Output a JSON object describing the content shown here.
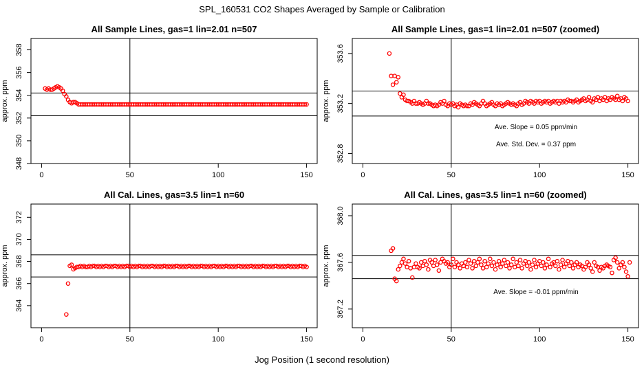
{
  "figure": {
    "title": "SPL_160531  CO2 Shapes Averaged by Sample or Calibration",
    "xlabel": "Jog Position (1 second resolution)"
  },
  "chart_data": [
    {
      "type": "scatter",
      "title": "All Sample Lines, gas=1 lin=2.01 n=507",
      "xlabel": "",
      "ylabel": "approx. ppm",
      "xlim": [
        -6,
        156
      ],
      "ylim": [
        348,
        359
      ],
      "xticks": [
        0,
        50,
        100,
        150
      ],
      "yticks": [
        348,
        350,
        352,
        354,
        356,
        358
      ],
      "hlines": [
        352.2,
        354.2
      ],
      "vline": 50,
      "annotations": [],
      "color": "#ff0000",
      "x_start": 2,
      "y": [
        354.6,
        354.5,
        354.6,
        354.5,
        354.5,
        354.6,
        354.7,
        354.8,
        354.7,
        354.6,
        354.4,
        354.1,
        353.9,
        353.6,
        353.4,
        353.3,
        353.4,
        353.4,
        353.3,
        353.2,
        353.2,
        353.2,
        353.2,
        353.2,
        353.2,
        353.2,
        353.2,
        353.2,
        353.2,
        353.2,
        353.2,
        353.2,
        353.2,
        353.2,
        353.2,
        353.2,
        353.2,
        353.2,
        353.2,
        353.2,
        353.2,
        353.2,
        353.2,
        353.2,
        353.2,
        353.2,
        353.2,
        353.2,
        353.2,
        353.2,
        353.2,
        353.2,
        353.2,
        353.2,
        353.2,
        353.2,
        353.2,
        353.2,
        353.2,
        353.2,
        353.2,
        353.2,
        353.2,
        353.2,
        353.2,
        353.2,
        353.2,
        353.2,
        353.2,
        353.2,
        353.2,
        353.2,
        353.2,
        353.2,
        353.2,
        353.2,
        353.2,
        353.2,
        353.2,
        353.2,
        353.2,
        353.2,
        353.2,
        353.2,
        353.2,
        353.2,
        353.2,
        353.2,
        353.2,
        353.2,
        353.2,
        353.2,
        353.2,
        353.2,
        353.2,
        353.2,
        353.2,
        353.2,
        353.2,
        353.2,
        353.2,
        353.2,
        353.2,
        353.2,
        353.2,
        353.2,
        353.2,
        353.2,
        353.2,
        353.2,
        353.2,
        353.2,
        353.2,
        353.2,
        353.2,
        353.2,
        353.2,
        353.2,
        353.2,
        353.2,
        353.2,
        353.2,
        353.2,
        353.2,
        353.2,
        353.2,
        353.2,
        353.2,
        353.2,
        353.2,
        353.2,
        353.2,
        353.2,
        353.2,
        353.2,
        353.2,
        353.2,
        353.2,
        353.2,
        353.2,
        353.2,
        353.2,
        353.2,
        353.2,
        353.2,
        353.2,
        353.2,
        353.2,
        353.2
      ]
    },
    {
      "type": "scatter",
      "title": "All Sample Lines, gas=1 lin=2.01 n=507 (zoomed)",
      "xlabel": "",
      "ylabel": "approx. ppm",
      "xlim": [
        -6,
        156
      ],
      "ylim": [
        352.72,
        353.72
      ],
      "xticks": [
        0,
        50,
        100,
        150
      ],
      "yticks": [
        352.8,
        353.2,
        353.6
      ],
      "hlines": [
        353.3,
        353.1
      ],
      "vline": 50,
      "annotations": [
        "Ave. Slope =  0.05  ppm/min",
        "Ave. Std. Dev. =  0.37  ppm"
      ],
      "color": "#ff0000",
      "x_start": 15,
      "y": [
        353.6,
        353.42,
        353.35,
        353.42,
        353.37,
        353.41,
        353.28,
        353.25,
        353.27,
        353.23,
        353.22,
        353.22,
        353.21,
        353.2,
        353.22,
        353.2,
        353.2,
        353.21,
        353.2,
        353.19,
        353.2,
        353.22,
        353.2,
        353.2,
        353.19,
        353.18,
        353.19,
        353.18,
        353.19,
        353.21,
        353.2,
        353.22,
        353.19,
        353.18,
        353.2,
        353.19,
        353.2,
        353.18,
        353.19,
        353.17,
        353.2,
        353.19,
        353.18,
        353.19,
        353.18,
        353.18,
        353.2,
        353.19,
        353.21,
        353.2,
        353.19,
        353.18,
        353.2,
        353.22,
        353.2,
        353.18,
        353.19,
        353.2,
        353.21,
        353.19,
        353.18,
        353.2,
        353.19,
        353.2,
        353.18,
        353.19,
        353.2,
        353.21,
        353.2,
        353.19,
        353.2,
        353.19,
        353.18,
        353.2,
        353.21,
        353.19,
        353.2,
        353.22,
        353.21,
        353.2,
        353.22,
        353.21,
        353.2,
        353.22,
        353.21,
        353.22,
        353.2,
        353.21,
        353.22,
        353.21,
        353.22,
        353.2,
        353.21,
        353.22,
        353.21,
        353.22,
        353.2,
        353.22,
        353.21,
        353.22,
        353.21,
        353.23,
        353.22,
        353.22,
        353.21,
        353.22,
        353.23,
        353.21,
        353.22,
        353.23,
        353.24,
        353.22,
        353.23,
        353.25,
        353.22,
        353.21,
        353.24,
        353.23,
        353.25,
        353.22,
        353.24,
        353.23,
        353.25,
        353.22,
        353.24,
        353.23,
        353.25,
        353.24,
        353.23,
        353.26,
        353.23,
        353.24,
        353.22,
        353.25,
        353.24,
        353.22
      ]
    },
    {
      "type": "scatter",
      "title": "All Cal. Lines, gas=3.5 lin=1 n=60",
      "xlabel": "",
      "ylabel": "approx. ppm",
      "xlim": [
        -6,
        156
      ],
      "ylim": [
        362,
        373.2
      ],
      "xticks": [
        0,
        50,
        100,
        150
      ],
      "yticks": [
        364,
        366,
        368,
        370,
        372
      ],
      "hlines": [
        368.6,
        366.6
      ],
      "vline": 50,
      "annotations": [],
      "color": "#ff0000",
      "x_start": 14,
      "y": [
        363.2,
        366.0,
        367.6,
        367.7,
        367.3,
        367.4,
        367.5,
        367.5,
        367.6,
        367.5,
        367.6,
        367.5,
        367.5,
        367.6,
        367.5,
        367.6,
        367.6,
        367.5,
        367.6,
        367.5,
        367.6,
        367.5,
        367.6,
        367.6,
        367.5,
        367.6,
        367.5,
        367.6,
        367.6,
        367.5,
        367.6,
        367.5,
        367.6,
        367.5,
        367.6,
        367.6,
        367.5,
        367.6,
        367.5,
        367.6,
        367.5,
        367.6,
        367.6,
        367.5,
        367.6,
        367.5,
        367.6,
        367.5,
        367.6,
        367.6,
        367.5,
        367.6,
        367.5,
        367.6,
        367.5,
        367.6,
        367.6,
        367.5,
        367.6,
        367.5,
        367.6,
        367.5,
        367.6,
        367.6,
        367.5,
        367.6,
        367.5,
        367.6,
        367.5,
        367.6,
        367.6,
        367.5,
        367.6,
        367.5,
        367.6,
        367.5,
        367.6,
        367.6,
        367.5,
        367.6,
        367.5,
        367.6,
        367.5,
        367.6,
        367.6,
        367.5,
        367.6,
        367.5,
        367.6,
        367.5,
        367.6,
        367.6,
        367.5,
        367.6,
        367.5,
        367.6,
        367.5,
        367.6,
        367.6,
        367.5,
        367.6,
        367.5,
        367.6,
        367.5,
        367.6,
        367.6,
        367.5,
        367.6,
        367.5,
        367.6,
        367.5,
        367.6,
        367.6,
        367.5,
        367.6,
        367.5,
        367.6,
        367.5,
        367.6,
        367.6,
        367.5,
        367.6,
        367.5,
        367.6,
        367.5,
        367.6,
        367.6,
        367.5,
        367.6,
        367.5,
        367.6,
        367.5,
        367.6,
        367.6,
        367.5,
        367.6,
        367.5
      ]
    },
    {
      "type": "scatter",
      "title": "All Cal. Lines, gas=3.5 lin=1 n=60 (zoomed)",
      "xlabel": "",
      "ylabel": "approx. ppm",
      "xlim": [
        -6,
        156
      ],
      "ylim": [
        367.04,
        368.1
      ],
      "xticks": [
        0,
        50,
        100,
        150
      ],
      "yticks": [
        367.2,
        367.6,
        368.0
      ],
      "hlines": [
        367.66,
        367.46
      ],
      "vline": 50,
      "annotations": [
        "Ave. Slope =  -0.01  ppm/min"
      ],
      "color": "#ff0000",
      "x_start": 16,
      "y": [
        367.7,
        367.72,
        367.46,
        367.44,
        367.54,
        367.57,
        367.6,
        367.63,
        367.59,
        367.56,
        367.61,
        367.55,
        367.47,
        367.56,
        367.59,
        367.56,
        367.55,
        367.6,
        367.57,
        367.61,
        367.58,
        367.54,
        367.62,
        367.6,
        367.57,
        367.62,
        367.58,
        367.53,
        367.6,
        367.63,
        367.61,
        367.59,
        367.6,
        367.56,
        367.58,
        367.63,
        367.56,
        367.6,
        367.58,
        367.55,
        367.59,
        367.57,
        367.6,
        367.56,
        367.62,
        367.59,
        367.55,
        367.61,
        367.57,
        367.6,
        367.63,
        367.58,
        367.55,
        367.61,
        367.56,
        367.59,
        367.63,
        367.57,
        367.6,
        367.54,
        367.58,
        367.61,
        367.56,
        367.59,
        367.62,
        367.57,
        367.6,
        367.55,
        367.58,
        367.63,
        367.56,
        367.6,
        367.57,
        367.62,
        367.55,
        367.59,
        367.61,
        367.57,
        367.6,
        367.54,
        367.58,
        367.62,
        367.56,
        367.59,
        367.61,
        367.57,
        367.6,
        367.55,
        367.58,
        367.63,
        367.56,
        367.59,
        367.6,
        367.57,
        367.61,
        367.54,
        367.58,
        367.62,
        367.56,
        367.59,
        367.61,
        367.57,
        367.6,
        367.55,
        367.58,
        367.6,
        367.56,
        367.58,
        367.57,
        367.54,
        367.56,
        367.6,
        367.58,
        367.55,
        367.52,
        367.6,
        367.57,
        367.56,
        367.53,
        367.56,
        367.55,
        367.57,
        367.58,
        367.57,
        367.56,
        367.51,
        367.62,
        367.64,
        367.6,
        367.55,
        367.58,
        367.6,
        367.56,
        367.52,
        367.48,
        367.6
      ]
    }
  ]
}
